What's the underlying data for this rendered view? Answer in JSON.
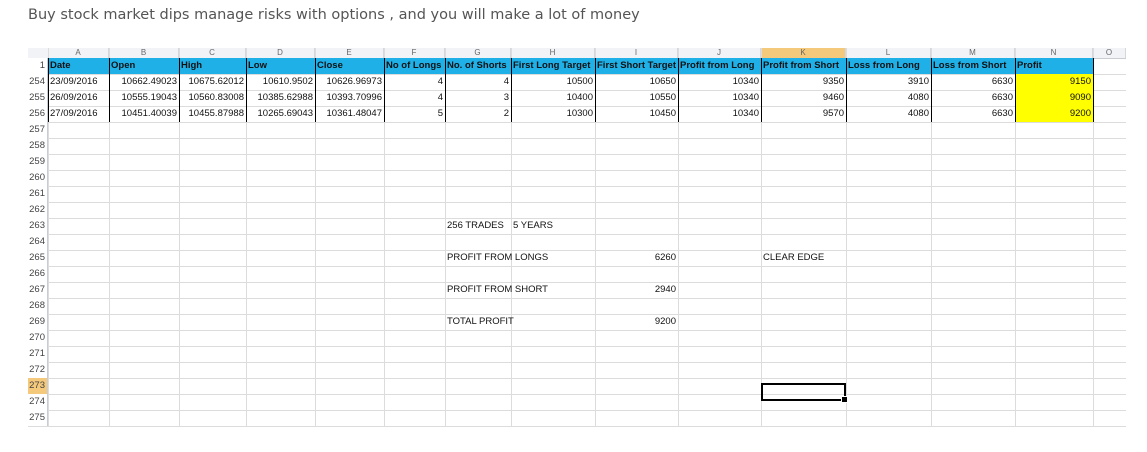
{
  "page": {
    "title": "Buy stock market dips manage risks with options , and you will make a lot of money"
  },
  "spreadsheet": {
    "column_letters": [
      "A",
      "B",
      "C",
      "D",
      "E",
      "F",
      "G",
      "H",
      "I",
      "J",
      "K",
      "L",
      "M",
      "N",
      "O"
    ],
    "selected_column": "K",
    "header_row_number": "1",
    "headers": [
      "Date",
      "Open",
      "High",
      "Low",
      "Close",
      "No of Longs",
      "No. of Shorts",
      "First Long Target",
      "First Short Target",
      "Profit from Long",
      "Profit from Short",
      "Loss from Long",
      "Loss from Short",
      "Profit"
    ],
    "rows": [
      {
        "num": "254",
        "cells": [
          "23/09/2016",
          "10662.49023",
          "10675.62012",
          "10610.9502",
          "10626.96973",
          "4",
          "4",
          "10500",
          "10650",
          "10340",
          "9350",
          "3910",
          "6630",
          "9150"
        ]
      },
      {
        "num": "255",
        "cells": [
          "26/09/2016",
          "10555.19043",
          "10560.83008",
          "10385.62988",
          "10393.70996",
          "4",
          "3",
          "10400",
          "10550",
          "10340",
          "9460",
          "4080",
          "6630",
          "9090"
        ]
      },
      {
        "num": "256",
        "cells": [
          "27/09/2016",
          "10451.40039",
          "10455.87988",
          "10265.69043",
          "10361.48047",
          "5",
          "2",
          "10300",
          "10450",
          "10340",
          "9570",
          "4080",
          "6630",
          "9200"
        ]
      }
    ],
    "empty_row_numbers": [
      "257",
      "258",
      "259",
      "260",
      "261",
      "262",
      "263",
      "264",
      "265",
      "266",
      "267",
      "268",
      "269",
      "270",
      "271",
      "272",
      "273",
      "274",
      "275"
    ],
    "selected_row": "273",
    "summary": {
      "trades_label": "256 TRADES",
      "years_label": "5 YEARS",
      "profit_longs_label": "PROFIT FROM LONGS",
      "profit_longs_value": "6260",
      "clear_edge_label": "CLEAR EDGE",
      "profit_short_label": "PROFIT FROM SHORT",
      "profit_short_value": "2940",
      "total_profit_label": "TOTAL PROFIT",
      "total_profit_value": "9200"
    },
    "colors": {
      "header_fill": "#1fb0e8",
      "highlight_fill": "#ffff00",
      "selection_fill": "#f5c97c"
    }
  }
}
